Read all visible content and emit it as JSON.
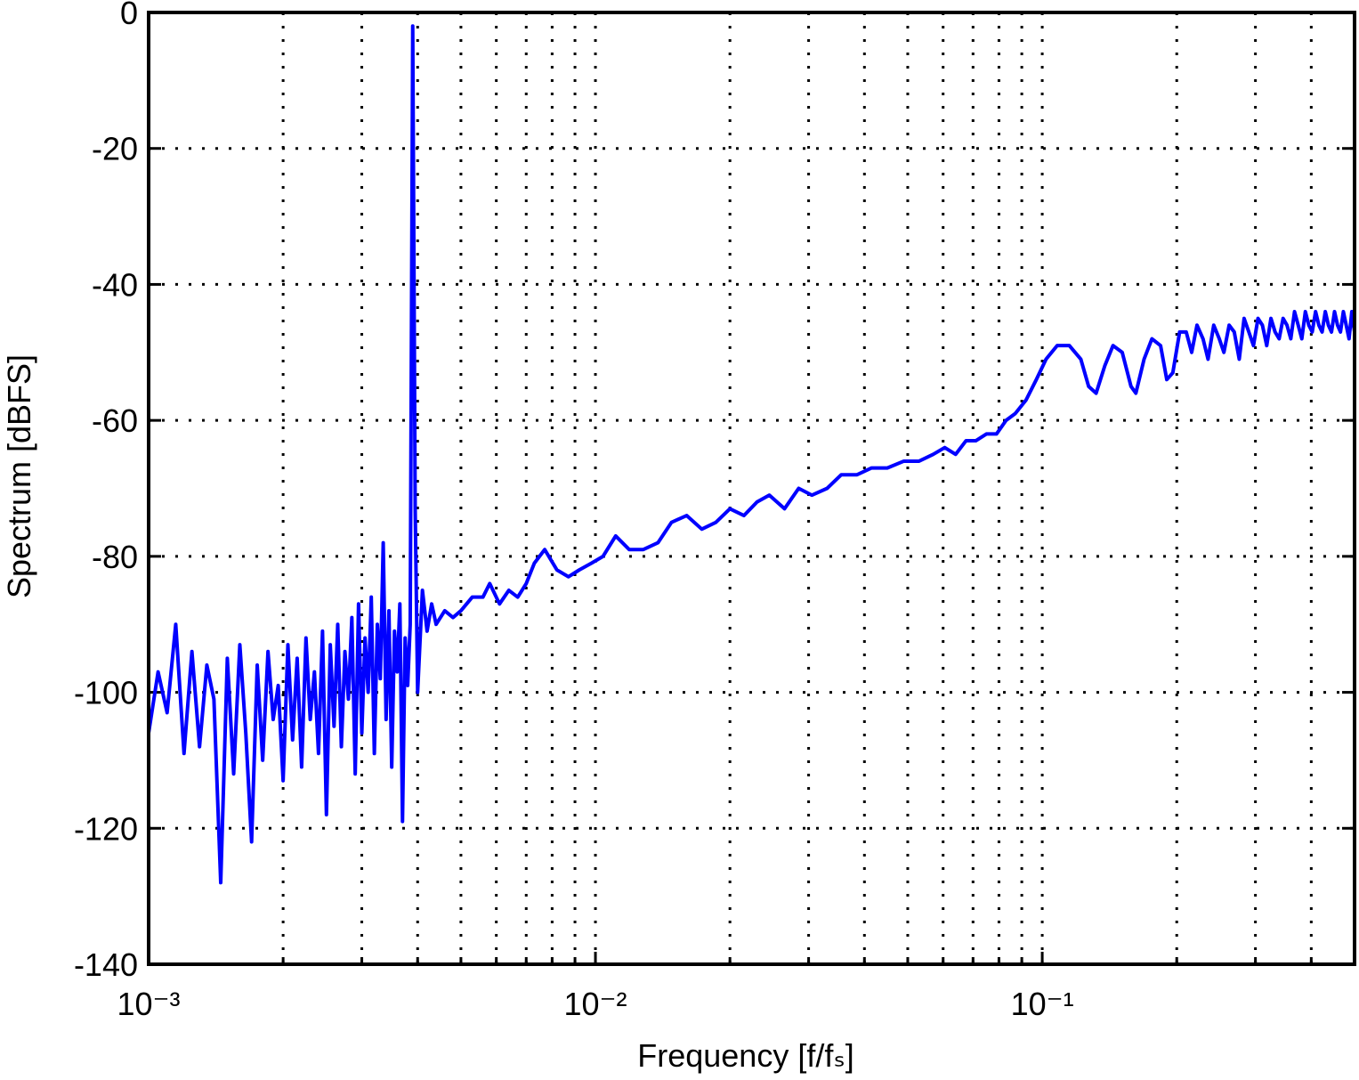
{
  "chart_data": {
    "type": "line",
    "xlabel": "Frequency [f/fₛ]",
    "ylabel": "Spectrum [dBFS]",
    "xscale": "log",
    "grid": true,
    "color": "#0000ff",
    "xlim": [
      0.001,
      0.5
    ],
    "ylim": [
      -140,
      0
    ],
    "xticks": [
      {
        "value": 0.001,
        "label": "10⁻³"
      },
      {
        "value": 0.01,
        "label": "10⁻²"
      },
      {
        "value": 0.1,
        "label": "10⁻¹"
      }
    ],
    "xminor": [
      0.002,
      0.003,
      0.004,
      0.005,
      0.006,
      0.007,
      0.008,
      0.009,
      0.02,
      0.03,
      0.04,
      0.05,
      0.06,
      0.07,
      0.08,
      0.09,
      0.2,
      0.3,
      0.4
    ],
    "yticks": [
      -140,
      -120,
      -100,
      -80,
      -60,
      -40,
      -20,
      0
    ],
    "x": [
      0.001,
      0.00105,
      0.0011,
      0.00115,
      0.0012,
      0.00125,
      0.0013,
      0.00135,
      0.0014,
      0.00145,
      0.0015,
      0.00155,
      0.0016,
      0.00165,
      0.0017,
      0.00175,
      0.0018,
      0.00185,
      0.0019,
      0.00195,
      0.002,
      0.00205,
      0.0021,
      0.00215,
      0.0022,
      0.00225,
      0.0023,
      0.00235,
      0.0024,
      0.00245,
      0.0025,
      0.00255,
      0.0026,
      0.00265,
      0.0027,
      0.00275,
      0.0028,
      0.00285,
      0.0029,
      0.00295,
      0.003,
      0.00305,
      0.0031,
      0.00315,
      0.0032,
      0.00325,
      0.0033,
      0.00335,
      0.0034,
      0.00345,
      0.0035,
      0.00355,
      0.0036,
      0.00365,
      0.0037,
      0.00375,
      0.0038,
      0.00385,
      0.0039,
      0.00395,
      0.004,
      0.0041,
      0.0042,
      0.0043,
      0.0044,
      0.0046,
      0.0048,
      0.005,
      0.0053,
      0.0056,
      0.0058,
      0.0061,
      0.0064,
      0.0067,
      0.007,
      0.0073,
      0.0077,
      0.0082,
      0.0087,
      0.0092,
      0.0098,
      0.0104,
      0.0111,
      0.0119,
      0.0128,
      0.0138,
      0.0148,
      0.016,
      0.0173,
      0.0186,
      0.02,
      0.0215,
      0.023,
      0.0245,
      0.0265,
      0.0285,
      0.0305,
      0.033,
      0.0355,
      0.0385,
      0.0415,
      0.045,
      0.049,
      0.053,
      0.057,
      0.0605,
      0.064,
      0.0675,
      0.071,
      0.075,
      0.079,
      0.083,
      0.087,
      0.092,
      0.097,
      0.102,
      0.108,
      0.115,
      0.122,
      0.127,
      0.132,
      0.138,
      0.144,
      0.151,
      0.158,
      0.162,
      0.169,
      0.176,
      0.184,
      0.19,
      0.196,
      0.203,
      0.21,
      0.216,
      0.222,
      0.229,
      0.235,
      0.242,
      0.249,
      0.255,
      0.262,
      0.269,
      0.276,
      0.283,
      0.29,
      0.297,
      0.304,
      0.311,
      0.318,
      0.325,
      0.332,
      0.339,
      0.346,
      0.353,
      0.36,
      0.367,
      0.374,
      0.381,
      0.388,
      0.395,
      0.402,
      0.409,
      0.416,
      0.423,
      0.43,
      0.437,
      0.444,
      0.451,
      0.458,
      0.465,
      0.472,
      0.479,
      0.486,
      0.493,
      0.5
    ],
    "values": [
      -106,
      -97,
      -103,
      -90,
      -109,
      -94,
      -108,
      -96,
      -101,
      -128,
      -95,
      -112,
      -93,
      -106,
      -122,
      -96,
      -110,
      -94,
      -104,
      -99,
      -113,
      -93,
      -107,
      -95,
      -111,
      -92,
      -104,
      -97,
      -109,
      -91,
      -118,
      -93,
      -105,
      -90,
      -108,
      -94,
      -101,
      -89,
      -112,
      -87,
      -106,
      -92,
      -100,
      -86,
      -109,
      -90,
      -98,
      -78,
      -104,
      -88,
      -111,
      -91,
      -97,
      -87,
      -119,
      -92,
      -99,
      -90,
      -2,
      -73,
      -100,
      -85,
      -91,
      -87,
      -90,
      -88,
      -89,
      -88,
      -86,
      -86,
      -84,
      -87,
      -85,
      -86,
      -84,
      -81,
      -79,
      -82,
      -83,
      -82,
      -81,
      -80,
      -77,
      -79,
      -79,
      -78,
      -75,
      -74,
      -76,
      -75,
      -73,
      -74,
      -72,
      -71,
      -73,
      -70,
      -71,
      -70,
      -68,
      -68,
      -67,
      -67,
      -66,
      -66,
      -65,
      -64,
      -65,
      -63,
      -63,
      -62,
      -62,
      -60,
      -59,
      -57,
      -54,
      -51,
      -49,
      -49,
      -51,
      -55,
      -56,
      -52,
      -49,
      -50,
      -55,
      -56,
      -51,
      -48,
      -49,
      -54,
      -53,
      -47,
      -47,
      -50,
      -46,
      -48,
      -51,
      -46,
      -48,
      -50,
      -46,
      -47,
      -51,
      -45,
      -47,
      -49,
      -45,
      -46,
      -49,
      -45,
      -47,
      -48,
      -45,
      -46,
      -48,
      -44,
      -46,
      -48,
      -44,
      -46,
      -47,
      -44,
      -46,
      -47,
      -44,
      -46,
      -47,
      -44,
      -46,
      -47,
      -44,
      -46,
      -48,
      -44,
      -47
    ]
  }
}
